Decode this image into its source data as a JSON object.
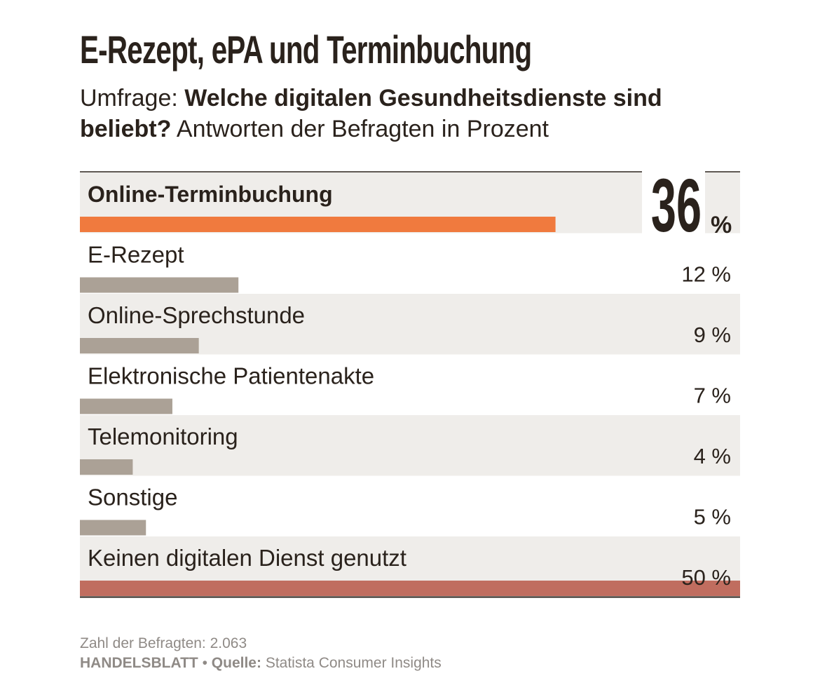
{
  "header": {
    "title": "E-Rezept, ePA und Terminbuchung",
    "subtitle_prefix": "Umfrage: ",
    "subtitle_bold": "Welche digitalen Gesundheitsdienste sind beliebt?",
    "subtitle_suffix": " Antworten der Befragten in Prozent"
  },
  "chart_data": {
    "type": "bar",
    "orientation": "horizontal",
    "title": "E-Rezept, ePA und Terminbuchung",
    "unit": "%",
    "xlim": [
      0,
      50
    ],
    "categories": [
      "Online-Terminbuchung",
      "E-Rezept",
      "Online-Sprechstunde",
      "Elektronische Patientenakte",
      "Telemonitoring",
      "Sonstige",
      "Keinen digitalen Dienst genutzt"
    ],
    "values": [
      36,
      12,
      9,
      7,
      4,
      5,
      50
    ],
    "highlight_index": 0,
    "colors": {
      "highlight": "#f07a3e",
      "default": "#aba196",
      "none": "#c06d5f",
      "row_shade": "#efedea",
      "text": "#2a221c"
    }
  },
  "footer": {
    "respondents": "Zahl der Befragten: 2.063",
    "brand": "HANDELSBLATT",
    "separator": " • ",
    "source_label": "Quelle:",
    "source_text": " Statista Consumer Insights"
  }
}
